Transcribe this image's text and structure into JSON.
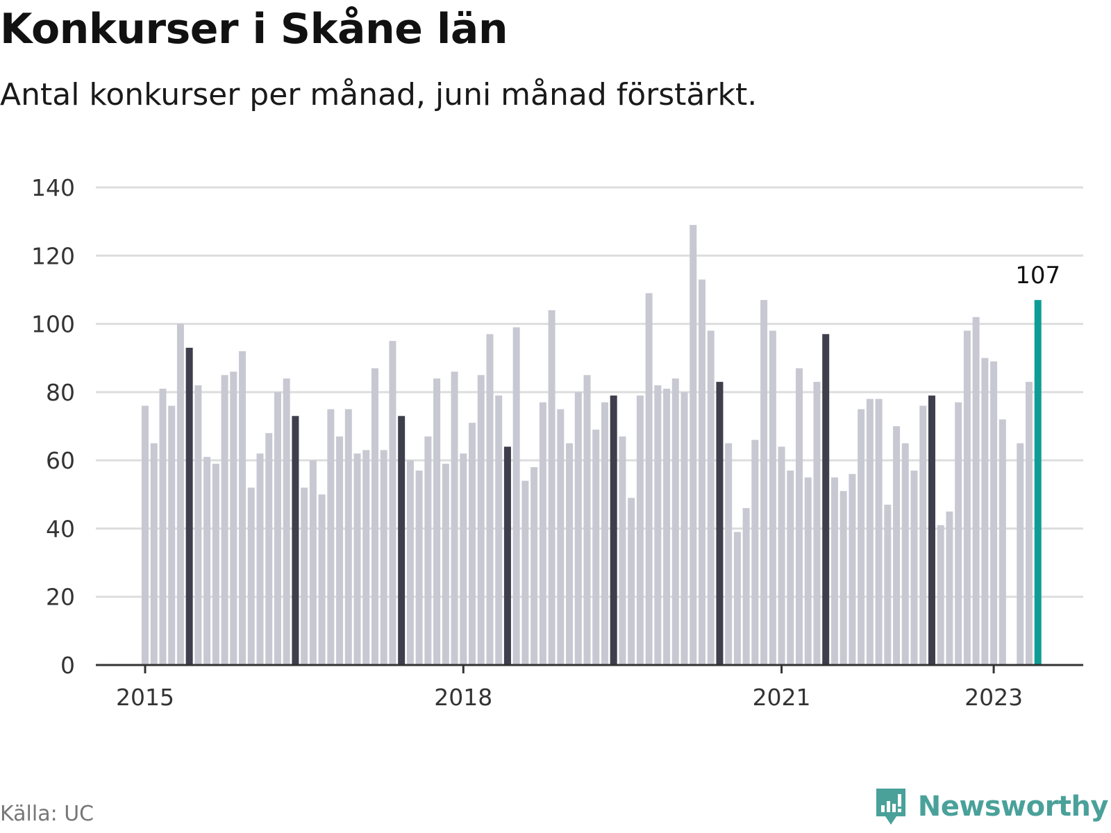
{
  "title": "Konkurser i Skåne län",
  "subtitle": "Antal konkurser per månad, juni månad förstärkt.",
  "source": "Källa: UC",
  "brand": {
    "name": "Newsworthy",
    "logo_icon": "newsworthy-logo-icon"
  },
  "colors": {
    "bar": "#c8c8d2",
    "bar_june": "#3e3e4c",
    "bar_latest": "#0e9d94",
    "grid": "#dddddd",
    "axis": "#333333",
    "brand": "#4aa19a"
  },
  "chart_data": {
    "type": "bar",
    "title": "Konkurser i Skåne län",
    "subtitle": "Antal konkurser per månad, juni månad förstärkt.",
    "xlabel": "",
    "ylabel": "",
    "ylim": [
      0,
      140
    ],
    "yticks": [
      0,
      20,
      40,
      60,
      80,
      100,
      120,
      140
    ],
    "xtick_labels": [
      "2015",
      "2018",
      "2021",
      "2023"
    ],
    "grid": true,
    "start": "2015-01",
    "end": "2023-06",
    "highlight": "June of each year (dark bars); latest month (teal)",
    "annotation": {
      "date": "2023-06",
      "text": "107"
    },
    "series": [
      {
        "values": [
          76,
          65,
          81,
          76,
          100,
          93,
          82,
          61,
          59,
          85,
          86,
          92,
          52,
          62,
          68,
          80,
          84,
          73,
          52,
          60,
          50,
          75,
          67,
          75,
          62,
          63,
          87,
          63,
          95,
          73,
          60,
          57,
          67,
          84,
          59,
          86,
          62,
          71,
          85,
          97,
          79,
          64,
          99,
          54,
          58,
          77,
          104,
          75,
          65,
          80,
          85,
          69,
          77,
          79,
          67,
          49,
          79,
          109,
          82,
          81,
          84,
          80,
          129,
          113,
          98,
          83,
          65,
          39,
          46,
          66,
          107,
          98,
          64,
          57,
          87,
          55,
          83,
          97,
          55,
          51,
          56,
          75,
          78,
          78,
          47,
          70,
          65,
          57,
          76,
          79,
          41,
          45,
          77,
          98,
          102,
          90,
          89,
          72,
          0,
          65,
          83,
          107
        ]
      }
    ]
  }
}
